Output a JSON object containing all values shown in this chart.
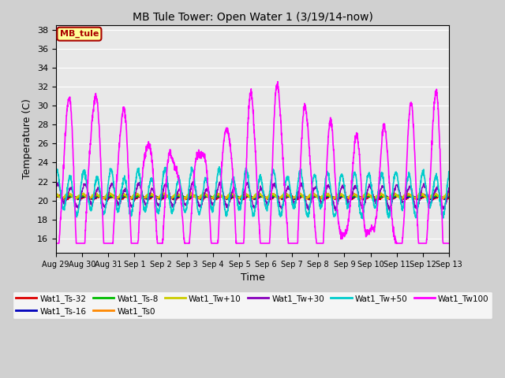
{
  "title": "MB Tule Tower: Open Water 1 (3/19/14-now)",
  "xlabel": "Time",
  "ylabel": "Temperature (C)",
  "ylim": [
    14.5,
    38.5
  ],
  "yticks": [
    16,
    18,
    20,
    22,
    24,
    26,
    28,
    30,
    32,
    34,
    36,
    38
  ],
  "fig_bg": "#d0d0d0",
  "plot_bg": "#e8e8e8",
  "legend_box_label": "MB_tule",
  "legend_box_facecolor": "#ffff99",
  "legend_box_edgecolor": "#aa0000",
  "series": [
    {
      "label": "Wat1_Ts-32",
      "color": "#dd0000"
    },
    {
      "label": "Wat1_Ts-16",
      "color": "#0000bb"
    },
    {
      "label": "Wat1_Ts-8",
      "color": "#00bb00"
    },
    {
      "label": "Wat1_Ts0",
      "color": "#ff8800"
    },
    {
      "label": "Wat1_Tw+10",
      "color": "#cccc00"
    },
    {
      "label": "Wat1_Tw+30",
      "color": "#8800bb"
    },
    {
      "label": "Wat1_Tw+50",
      "color": "#00cccc"
    },
    {
      "label": "Wat1_Tw100",
      "color": "#ff00ff"
    }
  ],
  "tick_labels": [
    "Aug 29",
    "Aug 30",
    "Aug 31",
    "Sep 1",
    "Sep 2",
    "Sep 3",
    "Sep 4",
    "Sep 5",
    "Sep 6",
    "Sep 7",
    "Sep 8",
    "Sep 9",
    "Sep 10",
    "Sep 11",
    "Sep 12",
    "Sep 13"
  ],
  "n_days": 15,
  "ppd": 144
}
